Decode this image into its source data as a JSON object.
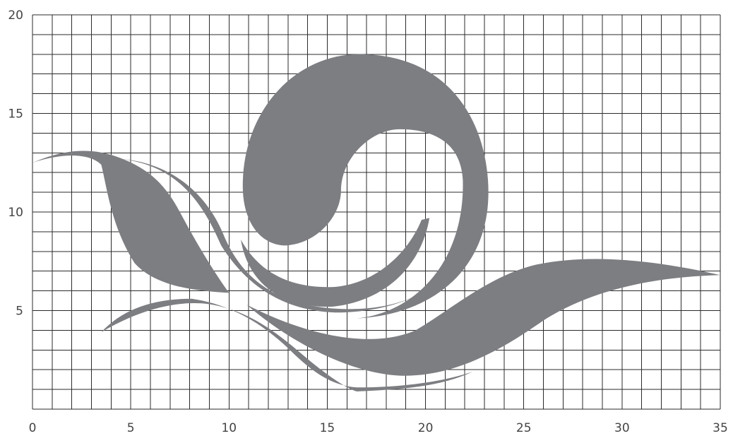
{
  "axes": {
    "x_range": [
      0,
      35
    ],
    "y_range": [
      0,
      20
    ],
    "grid_step": 1,
    "x_tick_labels": [
      {
        "value": 0,
        "label": "0"
      },
      {
        "value": 5,
        "label": "5"
      },
      {
        "value": 10,
        "label": "10"
      },
      {
        "value": 15,
        "label": "15"
      },
      {
        "value": 20,
        "label": "20"
      },
      {
        "value": 25,
        "label": "25"
      },
      {
        "value": 30,
        "label": "30"
      },
      {
        "value": 35,
        "label": "35"
      }
    ],
    "y_tick_labels": [
      {
        "value": 5,
        "label": "5"
      },
      {
        "value": 10,
        "label": "10"
      },
      {
        "value": 15,
        "label": "15"
      },
      {
        "value": 20,
        "label": "20"
      }
    ]
  },
  "colors": {
    "emblem": "#7d7e82",
    "grid": "#2b2b2b",
    "background": "#ffffff"
  }
}
